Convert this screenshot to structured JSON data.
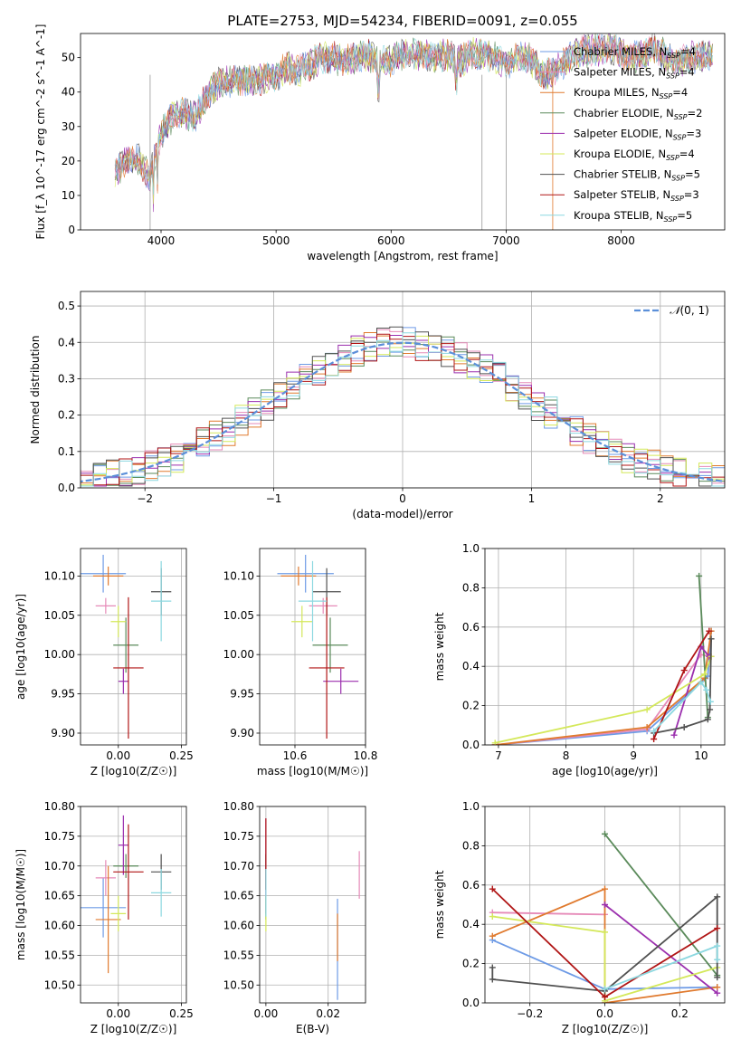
{
  "colors": [
    "#6e9be6",
    "#e68ab8",
    "#e07a2e",
    "#5a8a5a",
    "#9b2fae",
    "#d4e85a",
    "#505050",
    "#b01515",
    "#8cd8e0"
  ],
  "chart_data": [
    {
      "id": "spectrum",
      "type": "line",
      "title": "PLATE=2753, MJD=54234, FIBERID=0091, z=0.055",
      "xlabel": "wavelength [Angstrom, rest frame]",
      "ylabel": "Flux [f_λ 10^-17 erg cm^-2 s^-1 A^-1]",
      "xlim": [
        3300,
        8900
      ],
      "ylim": [
        0,
        57
      ],
      "xticks": [
        4000,
        5000,
        6000,
        7000,
        8000
      ],
      "yticks": [
        0,
        10,
        20,
        30,
        40,
        50
      ],
      "grid": false,
      "legend_placement": "upper-right",
      "legend": [
        "Chabrier MILES, N_SSP=4",
        "Salpeter MILES, N_SSP=4",
        "Kroupa MILES, N_SSP=4",
        "Chabrier ELODIE, N_SSP=2",
        "Salpeter ELODIE, N_SSP=3",
        "Kroupa ELODIE, N_SSP=4",
        "Chabrier STELIB, N_SSP=5",
        "Salpeter STELIB, N_SSP=3",
        "Kroupa STELIB, N_SSP=5"
      ],
      "continuum": [
        [
          3600,
          17
        ],
        [
          3700,
          20
        ],
        [
          3800,
          21
        ],
        [
          3900,
          15
        ],
        [
          4000,
          28
        ],
        [
          4100,
          33
        ],
        [
          4200,
          34
        ],
        [
          4300,
          33
        ],
        [
          4400,
          39
        ],
        [
          4500,
          43
        ],
        [
          4600,
          43
        ],
        [
          4700,
          44
        ],
        [
          4800,
          43
        ],
        [
          4900,
          44
        ],
        [
          5000,
          45
        ],
        [
          5100,
          47
        ],
        [
          5200,
          46
        ],
        [
          5300,
          48
        ],
        [
          5400,
          50
        ],
        [
          5500,
          50
        ],
        [
          5600,
          49
        ],
        [
          5700,
          50
        ],
        [
          5800,
          51
        ],
        [
          5900,
          49
        ],
        [
          6000,
          49
        ],
        [
          6100,
          51
        ],
        [
          6200,
          51
        ],
        [
          6300,
          51
        ],
        [
          6400,
          50
        ],
        [
          6500,
          51
        ],
        [
          6600,
          49
        ],
        [
          6700,
          51
        ],
        [
          6800,
          51
        ],
        [
          6900,
          50
        ],
        [
          7000,
          48
        ],
        [
          7100,
          50
        ],
        [
          7200,
          50
        ],
        [
          7300,
          46
        ],
        [
          7400,
          45
        ],
        [
          7500,
          48
        ],
        [
          7600,
          51
        ],
        [
          7700,
          52
        ],
        [
          7800,
          52
        ],
        [
          7900,
          53
        ],
        [
          8000,
          51
        ],
        [
          8100,
          50
        ],
        [
          8200,
          51
        ],
        [
          8300,
          53
        ],
        [
          8400,
          50
        ],
        [
          8500,
          49
        ],
        [
          8600,
          50
        ],
        [
          8700,
          50
        ],
        [
          8800,
          51
        ]
      ]
    },
    {
      "id": "residuals",
      "type": "histogram",
      "xlabel": "(data-model)/error",
      "ylabel": "Normed distribution",
      "xlim": [
        -2.5,
        2.5
      ],
      "ylim": [
        0,
        0.54
      ],
      "xticks": [
        -2,
        -1,
        0,
        1,
        2
      ],
      "yticks": [
        0.0,
        0.1,
        0.2,
        0.3,
        0.4,
        0.5
      ],
      "grid": true,
      "legend": [
        "N(0, 1)"
      ],
      "legend_placement": "upper-right",
      "reference_curve": "normal pdf, mean 0, sigma 1"
    },
    {
      "id": "age_vs_Z",
      "type": "scatter-errorbar",
      "xlabel": "Z [log10(Z/Z☉)]",
      "ylabel": "age  [log10(age/yr)]",
      "xlim": [
        -0.15,
        0.27
      ],
      "ylim": [
        9.885,
        10.135
      ],
      "xticks": [
        0.0,
        0.25
      ],
      "yticks": [
        9.9,
        9.95,
        10.0,
        10.05,
        10.1
      ],
      "grid": true,
      "points": [
        {
          "x": -0.06,
          "y": 10.103,
          "xerr": 0.09,
          "yerr": 0.024
        },
        {
          "x": -0.05,
          "y": 10.062,
          "xerr": 0.04,
          "yerr": 0.01
        },
        {
          "x": -0.04,
          "y": 10.1,
          "xerr": 0.06,
          "yerr": 0.012
        },
        {
          "x": 0.03,
          "y": 10.012,
          "xerr": 0.05,
          "yerr": 0.035
        },
        {
          "x": 0.02,
          "y": 9.966,
          "xerr": 0.02,
          "yerr": 0.016
        },
        {
          "x": 0.0,
          "y": 10.042,
          "xerr": 0.03,
          "yerr": 0.02
        },
        {
          "x": 0.17,
          "y": 10.08,
          "xerr": 0.04,
          "yerr": 0.03
        },
        {
          "x": 0.04,
          "y": 9.983,
          "xerr": 0.06,
          "yerr": 0.09
        },
        {
          "x": 0.17,
          "y": 10.068,
          "xerr": 0.04,
          "yerr": 0.051
        }
      ]
    },
    {
      "id": "age_vs_mass",
      "type": "scatter-errorbar",
      "xlabel": "mass [log10(M/M☉)]",
      "ylabel": "",
      "xlim": [
        10.5,
        10.8
      ],
      "ylim": [
        9.885,
        10.135
      ],
      "xticks": [
        10.6,
        10.8
      ],
      "yticks": [
        9.9,
        9.95,
        10.0,
        10.05,
        10.1
      ],
      "grid": true,
      "points": [
        {
          "x": 10.63,
          "y": 10.103,
          "xerr": 0.08,
          "yerr": 0.024
        },
        {
          "x": 10.68,
          "y": 10.062,
          "xerr": 0.04,
          "yerr": 0.01
        },
        {
          "x": 10.61,
          "y": 10.1,
          "xerr": 0.05,
          "yerr": 0.012
        },
        {
          "x": 10.7,
          "y": 10.012,
          "xerr": 0.05,
          "yerr": 0.035
        },
        {
          "x": 10.73,
          "y": 9.966,
          "xerr": 0.05,
          "yerr": 0.016
        },
        {
          "x": 10.62,
          "y": 10.042,
          "xerr": 0.03,
          "yerr": 0.02
        },
        {
          "x": 10.69,
          "y": 10.08,
          "xerr": 0.04,
          "yerr": 0.03
        },
        {
          "x": 10.69,
          "y": 9.983,
          "xerr": 0.05,
          "yerr": 0.09
        },
        {
          "x": 10.65,
          "y": 10.068,
          "xerr": 0.04,
          "yerr": 0.051
        }
      ]
    },
    {
      "id": "weight_vs_age",
      "type": "line",
      "xlabel": "age  [log10(age/yr)]",
      "ylabel": "mass weight",
      "xlim": [
        6.8,
        10.35
      ],
      "ylim": [
        0,
        1.0
      ],
      "xticks": [
        7,
        8,
        9,
        10
      ],
      "yticks": [
        0.0,
        0.2,
        0.4,
        0.6,
        0.8,
        1.0
      ],
      "grid": true,
      "series": [
        {
          "values": [
            [
              6.95,
              0.0
            ],
            [
              9.2,
              0.07
            ],
            [
              10.1,
              0.35
            ],
            [
              10.15,
              0.58
            ]
          ]
        },
        {
          "values": [
            [
              6.95,
              0.0
            ],
            [
              9.2,
              0.08
            ],
            [
              10.0,
              0.46
            ],
            [
              10.15,
              0.45
            ]
          ]
        },
        {
          "values": [
            [
              6.95,
              0.0
            ],
            [
              9.2,
              0.09
            ],
            [
              10.05,
              0.34
            ],
            [
              10.15,
              0.58
            ]
          ]
        },
        {
          "values": [
            [
              9.97,
              0.86
            ],
            [
              10.1,
              0.14
            ]
          ]
        },
        {
          "values": [
            [
              9.6,
              0.05
            ],
            [
              10.0,
              0.5
            ],
            [
              10.12,
              0.45
            ]
          ]
        },
        {
          "values": [
            [
              6.95,
              0.01
            ],
            [
              9.2,
              0.18
            ],
            [
              10.05,
              0.36
            ],
            [
              10.15,
              0.45
            ]
          ]
        },
        {
          "values": [
            [
              9.3,
              0.06
            ],
            [
              9.75,
              0.09
            ],
            [
              10.1,
              0.13
            ],
            [
              10.13,
              0.18
            ],
            [
              10.15,
              0.54
            ]
          ]
        },
        {
          "values": [
            [
              9.3,
              0.03
            ],
            [
              9.75,
              0.38
            ],
            [
              10.12,
              0.58
            ]
          ]
        },
        {
          "values": [
            [
              9.3,
              0.07
            ],
            [
              10.0,
              0.32
            ],
            [
              10.08,
              0.28
            ],
            [
              10.14,
              0.22
            ]
          ]
        }
      ]
    },
    {
      "id": "mass_vs_Z",
      "type": "scatter-errorbar",
      "xlabel": "Z [log10(Z/Z☉)]",
      "ylabel": "mass [log10(M/M☉)]",
      "xlim": [
        -0.15,
        0.27
      ],
      "ylim": [
        10.47,
        10.8
      ],
      "xticks": [
        0.0,
        0.25
      ],
      "yticks": [
        10.5,
        10.55,
        10.6,
        10.65,
        10.7,
        10.75,
        10.8
      ],
      "grid": true,
      "points": [
        {
          "x": -0.06,
          "y": 10.63,
          "xerr": 0.09,
          "yerr": 0.05
        },
        {
          "x": -0.05,
          "y": 10.68,
          "xerr": 0.04,
          "yerr": 0.03
        },
        {
          "x": -0.04,
          "y": 10.61,
          "xerr": 0.05,
          "yerr": 0.09
        },
        {
          "x": 0.03,
          "y": 10.7,
          "xerr": 0.05,
          "yerr": 0.02
        },
        {
          "x": 0.02,
          "y": 10.735,
          "xerr": 0.02,
          "yerr": 0.05
        },
        {
          "x": 0.0,
          "y": 10.62,
          "xerr": 0.03,
          "yerr": 0.03
        },
        {
          "x": 0.17,
          "y": 10.69,
          "xerr": 0.04,
          "yerr": 0.03
        },
        {
          "x": 0.04,
          "y": 10.69,
          "xerr": 0.06,
          "yerr": 0.08
        },
        {
          "x": 0.17,
          "y": 10.655,
          "xerr": 0.04,
          "yerr": 0.04
        }
      ]
    },
    {
      "id": "mass_vs_EBV",
      "type": "scatter-errorbar",
      "xlabel": "E(B-V)",
      "ylabel": "",
      "xlim": [
        -0.002,
        0.032
      ],
      "ylim": [
        10.47,
        10.8
      ],
      "xticks": [
        0.0,
        0.02
      ],
      "yticks": [
        10.5,
        10.55,
        10.6,
        10.65,
        10.7,
        10.75,
        10.8
      ],
      "grid": true,
      "points": [
        {
          "x": 0.023,
          "y": 10.56,
          "xerr": 0,
          "yerr": 0.085
        },
        {
          "x": 0.03,
          "y": 10.685,
          "xerr": 0,
          "yerr": 0.04
        },
        {
          "x": 0.023,
          "y": 10.58,
          "xerr": 0,
          "yerr": 0.04
        },
        {
          "x": 0.0,
          "y": 10.63,
          "xerr": 0,
          "yerr": 0.02
        },
        {
          "x": 0.0,
          "y": 10.7,
          "xerr": 0,
          "yerr": 0.08
        },
        {
          "x": 0.0,
          "y": 10.62,
          "xerr": 0,
          "yerr": 0.03
        },
        {
          "x": 0.0,
          "y": 10.69,
          "xerr": 0,
          "yerr": 0.03
        },
        {
          "x": 0.0,
          "y": 10.72,
          "xerr": 0,
          "yerr": 0.06
        },
        {
          "x": 0.0,
          "y": 10.655,
          "xerr": 0,
          "yerr": 0.04
        }
      ]
    },
    {
      "id": "weight_vs_Z",
      "type": "line",
      "xlabel": "Z [log10(Z/Z☉)]",
      "ylabel": "mass weight",
      "xlim": [
        -0.32,
        0.32
      ],
      "ylim": [
        0,
        1.0
      ],
      "xticks": [
        -0.2,
        0.0,
        0.2
      ],
      "yticks": [
        0.0,
        0.2,
        0.4,
        0.6,
        0.8,
        1.0
      ],
      "grid": true,
      "series": [
        {
          "values": [
            [
              -0.3,
              0.32
            ],
            [
              0.0,
              0.07
            ],
            [
              0.3,
              0.08
            ]
          ]
        },
        {
          "values": [
            [
              -0.3,
              0.46
            ],
            [
              0.0,
              0.45
            ]
          ]
        },
        {
          "values": [
            [
              -0.3,
              0.34
            ],
            [
              0.0,
              0.58
            ],
            [
              0.0,
              0.0
            ],
            [
              0.3,
              0.08
            ]
          ]
        },
        {
          "values": [
            [
              0.0,
              0.86
            ],
            [
              0.3,
              0.14
            ]
          ]
        },
        {
          "values": [
            [
              0.0,
              0.5
            ],
            [
              0.3,
              0.05
            ]
          ]
        },
        {
          "values": [
            [
              -0.3,
              0.44
            ],
            [
              0.0,
              0.36
            ],
            [
              0.0,
              0.01
            ],
            [
              0.3,
              0.18
            ]
          ]
        },
        {
          "values": [
            [
              -0.3,
              0.18
            ],
            [
              -0.3,
              0.12
            ],
            [
              0.0,
              0.06
            ],
            [
              0.3,
              0.54
            ],
            [
              0.3,
              0.13
            ]
          ]
        },
        {
          "values": [
            [
              -0.3,
              0.58
            ],
            [
              0.0,
              0.03
            ],
            [
              0.3,
              0.38
            ]
          ]
        },
        {
          "values": [
            [
              0.0,
              0.07
            ],
            [
              0.3,
              0.29
            ],
            [
              0.3,
              0.22
            ]
          ]
        }
      ]
    }
  ]
}
